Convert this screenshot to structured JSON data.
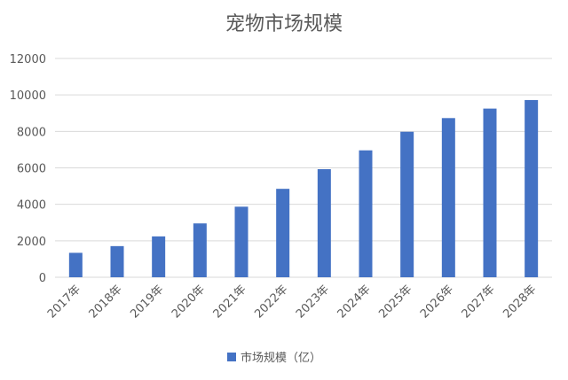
{
  "chart_data": {
    "type": "bar",
    "title": "宠物市场规模",
    "categories": [
      "2017年",
      "2018年",
      "2019年",
      "2020年",
      "2021年",
      "2022年",
      "2023年",
      "2024年",
      "2025年",
      "2026年",
      "2027年",
      "2028年"
    ],
    "series": [
      {
        "name": "市场规模（亿）",
        "values": [
          1340,
          1708,
          2241,
          2953,
          3870,
          4850,
          5928,
          6960,
          7980,
          8730,
          9250,
          9720
        ]
      }
    ],
    "ylim": [
      0,
      12000
    ],
    "yticks": [
      0,
      2000,
      4000,
      6000,
      8000,
      10000,
      12000
    ],
    "grid": true,
    "legend": "bottom",
    "colors": {
      "bar": "#4472c4",
      "grid": "#d9d9d9",
      "text": "#595959"
    }
  }
}
